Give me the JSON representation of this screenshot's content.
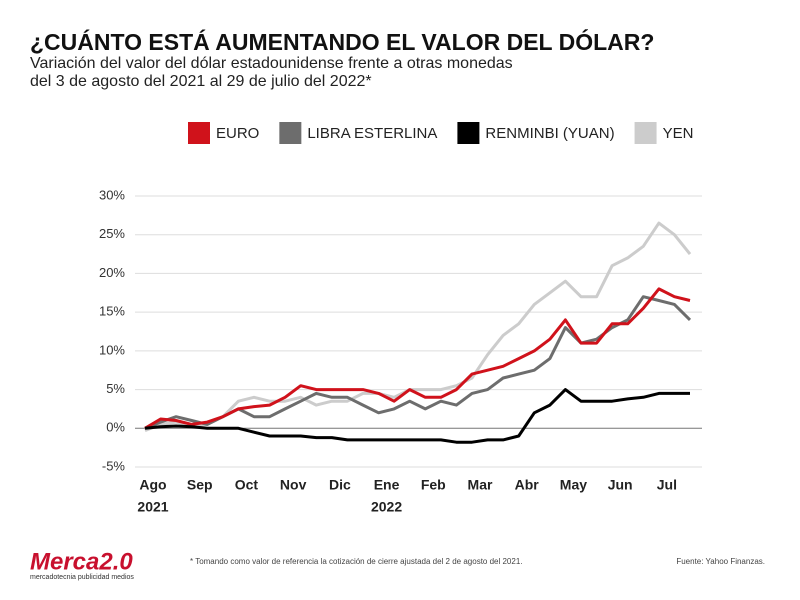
{
  "chart_data": {
    "type": "line",
    "title": "¿CUÁNTO ESTÁ AUMENTANDO EL VALOR DEL DÓLAR?",
    "subtitle": [
      "Variación del valor del dólar estadounidense frente a otras monedas",
      "del 3 de agosto del 2021 al 29 de julio del 2022*"
    ],
    "categories": [
      "Ago",
      null,
      null,
      "Sep",
      null,
      null,
      "Oct",
      null,
      null,
      "Nov",
      null,
      null,
      "Dic",
      null,
      null,
      "Ene",
      null,
      null,
      "Feb",
      null,
      null,
      "Mar",
      null,
      null,
      "Abr",
      null,
      null,
      "May",
      null,
      null,
      "Jun",
      null,
      null,
      "Jul",
      null,
      null
    ],
    "years": [
      "2021",
      "2022"
    ],
    "series": [
      {
        "name": "EURO",
        "color": "#d0121b",
        "values": [
          0,
          1.2,
          1.0,
          0.5,
          0.8,
          1.5,
          2.5,
          2.8,
          3.0,
          4.0,
          5.5,
          5.0,
          5.0,
          5.0,
          5.0,
          4.5,
          3.5,
          5.0,
          4.0,
          4.0,
          5.0,
          7.0,
          7.5,
          8.0,
          9.0,
          10.0,
          11.5,
          14.0,
          11.0,
          11.0,
          13.5,
          13.5,
          15.5,
          18.0,
          17.0,
          16.5
        ]
      },
      {
        "name": "LIBRA ESTERLINA",
        "color": "#6d6d6d",
        "values": [
          0,
          0.8,
          1.5,
          1.0,
          0.5,
          1.5,
          2.5,
          1.5,
          1.5,
          2.5,
          3.5,
          4.5,
          4.0,
          4.0,
          3.0,
          2.0,
          2.5,
          3.5,
          2.5,
          3.5,
          3.0,
          4.5,
          5.0,
          6.5,
          7.0,
          7.5,
          9.0,
          13.0,
          11.0,
          11.5,
          13.0,
          14.0,
          17.0,
          16.5,
          16.0,
          14.0
        ]
      },
      {
        "name": "RENMINBI (YUAN)",
        "color": "#000000",
        "values": [
          0,
          0.2,
          0.3,
          0.2,
          0,
          0,
          0,
          -0.5,
          -1.0,
          -1.0,
          -1.0,
          -1.2,
          -1.2,
          -1.5,
          -1.5,
          -1.5,
          -1.5,
          -1.5,
          -1.5,
          -1.5,
          -1.8,
          -1.8,
          -1.5,
          -1.5,
          -1.0,
          2.0,
          3.0,
          5.0,
          3.5,
          3.5,
          3.5,
          3.8,
          4.0,
          4.5,
          4.5,
          4.5
        ]
      },
      {
        "name": "YEN",
        "color": "#cccccc",
        "values": [
          -0.3,
          0.5,
          0.8,
          0.3,
          0.5,
          1.5,
          3.5,
          4.0,
          3.5,
          3.5,
          4.0,
          3.0,
          3.5,
          3.5,
          4.5,
          4.5,
          4.0,
          5.0,
          5.0,
          5.0,
          5.5,
          6.5,
          9.5,
          12.0,
          13.5,
          16.0,
          17.5,
          19.0,
          17.0,
          17.0,
          21.0,
          22.0,
          23.5,
          26.5,
          25.0,
          22.5
        ]
      }
    ],
    "ylim": [
      -5,
      30
    ],
    "yticks": [
      {
        "value": -5,
        "label": "-5%"
      },
      {
        "value": 0,
        "label": "0%"
      },
      {
        "value": 5,
        "label": "5%"
      },
      {
        "value": 10,
        "label": "10%"
      },
      {
        "value": 15,
        "label": "15%"
      },
      {
        "value": 20,
        "label": "20%"
      },
      {
        "value": 25,
        "label": "25%"
      },
      {
        "value": 30,
        "label": "30%"
      }
    ],
    "grid": true
  },
  "footer": {
    "logo": "Merca2.0",
    "logo_tagline": "mercadotecnia publicidad medios",
    "footnote": "* Tomando como valor de referencia la cotización de cierre ajustada del 2 de agosto del 2021.",
    "source": "Fuente: Yahoo Finanzas."
  }
}
